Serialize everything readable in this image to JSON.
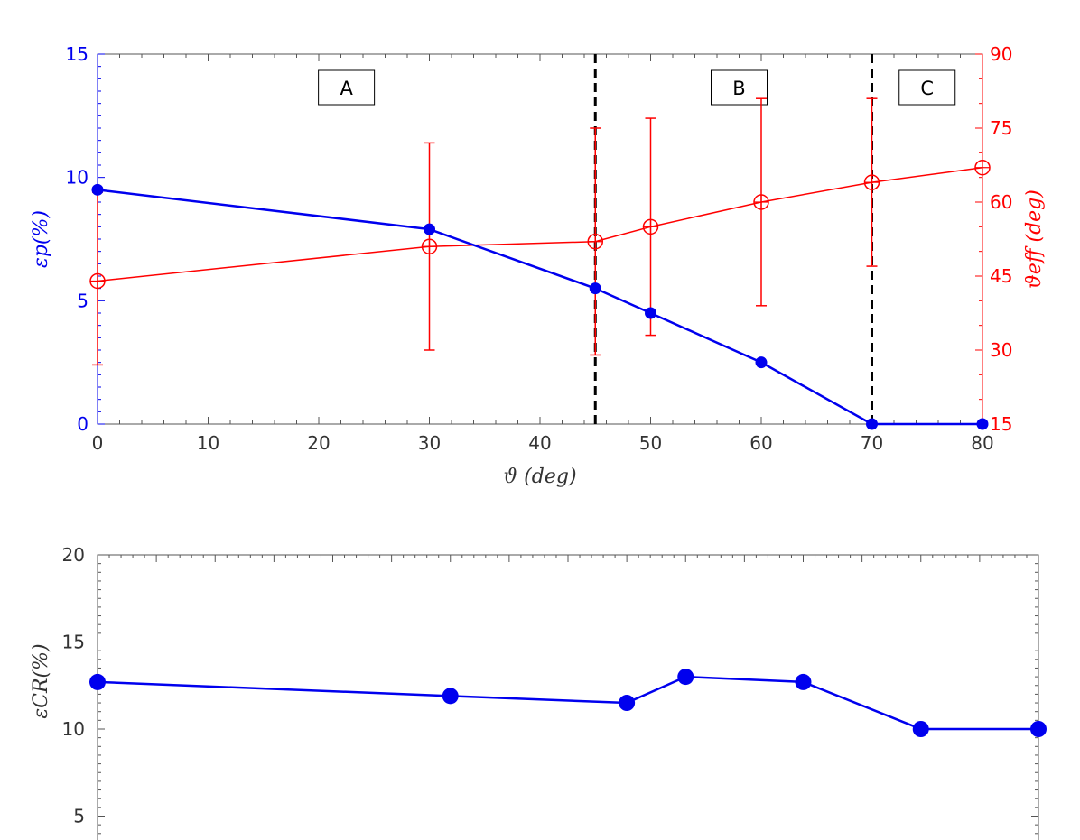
{
  "chart_data": [
    {
      "type": "line",
      "x": [
        0,
        30,
        45,
        50,
        60,
        70,
        80
      ],
      "xlim": [
        0,
        80
      ],
      "xticks": [
        0,
        10,
        20,
        30,
        40,
        50,
        60,
        70,
        80
      ],
      "xlabel": "ϑ (deg)",
      "ylabel_left": "εp(%)",
      "ylabel_right": "ϑeff (deg)",
      "ylim_left": [
        0,
        15
      ],
      "yticks_left": [
        0,
        5,
        10,
        15
      ],
      "ylim_right": [
        15,
        90
      ],
      "yticks_right": [
        15,
        30,
        45,
        60,
        75,
        90
      ],
      "grid": false,
      "series": [
        {
          "axis": "left",
          "color": "#0000ee",
          "marker": "filled-circle",
          "values": [
            9.5,
            7.9,
            5.5,
            4.5,
            2.5,
            0,
            0
          ]
        },
        {
          "axis": "right",
          "color": "#ff0000",
          "marker": "open-circle-cross",
          "values": [
            44,
            51,
            52,
            55,
            60,
            64,
            67
          ],
          "error_low": [
            27,
            30,
            29,
            33,
            39,
            47,
            null
          ],
          "error_high": [
            62,
            72,
            75,
            77,
            81,
            81,
            null
          ]
        }
      ],
      "vlines": [
        45,
        70
      ],
      "region_labels": [
        {
          "text": "A",
          "x": 22.5
        },
        {
          "text": "B",
          "x": 58
        },
        {
          "text": "C",
          "x": 75
        }
      ],
      "left_axis_color": "#0000ee",
      "right_axis_color": "#ff0000"
    },
    {
      "type": "line",
      "xlim": [
        0,
        80
      ],
      "x": [
        0,
        30,
        45,
        50,
        60,
        70,
        80
      ],
      "ylabel": "εCR(%)",
      "ylim": [
        3,
        20
      ],
      "yticks": [
        5,
        10,
        15,
        20
      ],
      "grid": false,
      "series": [
        {
          "color": "#0000ee",
          "marker": "filled-circle",
          "values": [
            12.7,
            11.9,
            11.5,
            13.0,
            12.7,
            10.0,
            10.0
          ]
        }
      ]
    }
  ]
}
